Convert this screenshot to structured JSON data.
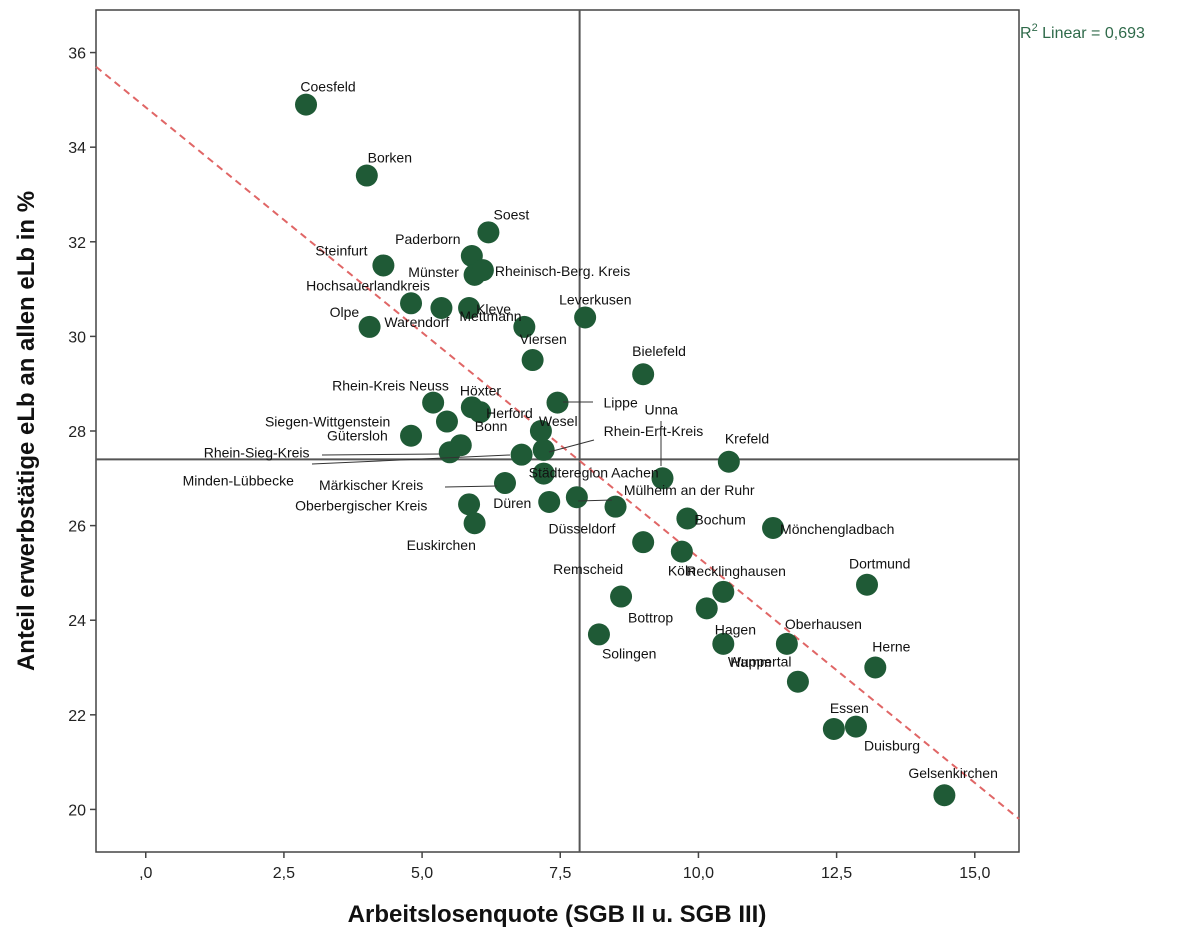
{
  "chart_data": {
    "type": "scatter",
    "xlabel": "Arbeitslosenquote (SGB II u. SGB III)",
    "ylabel": "Anteil erwerbstätige eLb an allen eLb in %",
    "xlim": [
      -0.9,
      15.8
    ],
    "ylim": [
      19.1,
      36.9
    ],
    "x_ticks": [
      ",0",
      "2,5",
      "5,0",
      "7,5",
      "10,0",
      "12,5",
      "15,0"
    ],
    "x_tick_values": [
      0,
      2.5,
      5,
      7.5,
      10,
      12.5,
      15
    ],
    "y_ticks": [
      "20",
      "22",
      "24",
      "26",
      "28",
      "30",
      "32",
      "34",
      "36"
    ],
    "y_tick_values": [
      20,
      22,
      24,
      26,
      28,
      30,
      32,
      34,
      36
    ],
    "reference_lines": {
      "x_mean": 7.85,
      "y_mean": 27.4
    },
    "fit_line": {
      "label_prefix": "R",
      "label_sup": "2",
      "label_rest": " Linear = 0,693",
      "x_start": -0.9,
      "y_start": 35.7,
      "x_end": 15.8,
      "y_end": 19.8
    },
    "marker_color": "#1f5a36",
    "fit_color": "#e06666",
    "r2_color": "#2f6a4a",
    "points": [
      {
        "label": "Coesfeld",
        "x": 2.9,
        "y": 34.9
      },
      {
        "label": "Borken",
        "x": 4.0,
        "y": 33.4
      },
      {
        "label": "Soest",
        "x": 6.2,
        "y": 32.2
      },
      {
        "label": "Paderborn",
        "x": 5.9,
        "y": 31.7
      },
      {
        "label": "Münster",
        "x": 5.95,
        "y": 31.3
      },
      {
        "label": "Steinfurt",
        "x": 4.3,
        "y": 31.5
      },
      {
        "label": "Rheinisch-Berg. Kreis",
        "x": 6.1,
        "y": 31.4
      },
      {
        "label": "Hochsauerlandkreis",
        "x": 4.8,
        "y": 30.7
      },
      {
        "label": "Warendorf",
        "x": 5.35,
        "y": 30.6
      },
      {
        "label": "Kleve",
        "x": 5.85,
        "y": 30.6
      },
      {
        "label": "Olpe",
        "x": 4.05,
        "y": 30.2
      },
      {
        "label": "Leverkusen",
        "x": 7.95,
        "y": 30.4
      },
      {
        "label": "Mettmann",
        "x": 6.85,
        "y": 30.2
      },
      {
        "label": "Bielefeld",
        "x": 9.0,
        "y": 29.2
      },
      {
        "label": "Viersen",
        "x": 7.0,
        "y": 29.5
      },
      {
        "label": "Rhein-Kreis Neuss",
        "x": 5.2,
        "y": 28.6
      },
      {
        "label": "Höxter",
        "x": 5.9,
        "y": 28.5
      },
      {
        "label": "Herford",
        "x": 6.05,
        "y": 28.4
      },
      {
        "label": "Lippe",
        "x": 7.45,
        "y": 28.6
      },
      {
        "label": "Siegen-Wittgenstein",
        "x": 5.45,
        "y": 28.2
      },
      {
        "label": "Wesel",
        "x": 7.15,
        "y": 28.0
      },
      {
        "label": "Unna",
        "x": 9.35,
        "y": 27.0
      },
      {
        "label": "Gütersloh",
        "x": 4.8,
        "y": 27.9
      },
      {
        "label": "Bonn",
        "x": 5.7,
        "y": 27.7
      },
      {
        "label": "Rhein-Sieg-Kreis",
        "x": 5.5,
        "y": 27.55
      },
      {
        "label": "Rhein-Erft-Kreis",
        "x": 7.2,
        "y": 27.6
      },
      {
        "label": "Krefeld",
        "x": 10.55,
        "y": 27.35
      },
      {
        "label": "Minden-Lübbecke",
        "x": 6.8,
        "y": 27.5
      },
      {
        "label": "Städteregion Aachen",
        "x": 7.2,
        "y": 27.1
      },
      {
        "label": "Märkischer Kreis",
        "x": 6.5,
        "y": 26.9
      },
      {
        "label": "Düren",
        "x": 7.3,
        "y": 26.5
      },
      {
        "label": "Mülheim an der Ruhr",
        "x": 7.8,
        "y": 26.6
      },
      {
        "label": "Oberbergischer Kreis",
        "x": 5.85,
        "y": 26.45
      },
      {
        "label": "Euskirchen",
        "x": 5.95,
        "y": 26.05
      },
      {
        "label": "Düsseldorf",
        "x": 8.5,
        "y": 26.4
      },
      {
        "label": "Bochum",
        "x": 9.8,
        "y": 26.15
      },
      {
        "label": "Mönchengladbach",
        "x": 11.35,
        "y": 25.95
      },
      {
        "label": "Remscheid",
        "x": 9.0,
        "y": 25.65
      },
      {
        "label": "Köln",
        "x": 9.7,
        "y": 25.45
      },
      {
        "label": "Recklinghausen",
        "x": 10.45,
        "y": 24.6
      },
      {
        "label": "Dortmund",
        "x": 13.05,
        "y": 24.75
      },
      {
        "label": "Bottrop",
        "x": 8.6,
        "y": 24.5
      },
      {
        "label": "Hagen",
        "x": 10.15,
        "y": 24.25
      },
      {
        "label": "Oberhausen",
        "x": 11.6,
        "y": 23.5
      },
      {
        "label": "Solingen",
        "x": 8.2,
        "y": 23.7
      },
      {
        "label": "Hamm",
        "x": 10.45,
        "y": 23.5
      },
      {
        "label": "Herne",
        "x": 13.2,
        "y": 23.0
      },
      {
        "label": "Wuppertal",
        "x": 11.8,
        "y": 22.7
      },
      {
        "label": "Essen",
        "x": 12.45,
        "y": 21.7
      },
      {
        "label": "Duisburg",
        "x": 12.85,
        "y": 21.75
      },
      {
        "label": "Gelsenkirchen",
        "x": 14.45,
        "y": 20.3
      }
    ]
  }
}
